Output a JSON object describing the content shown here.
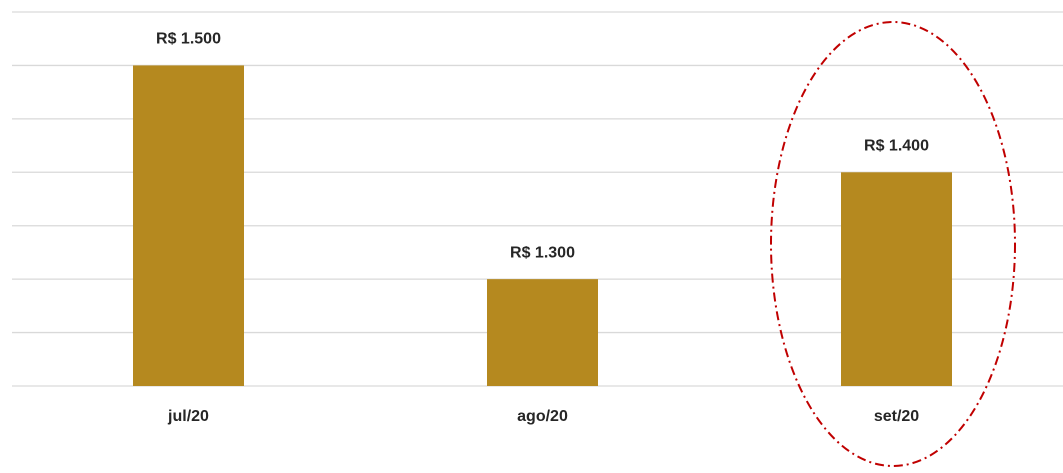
{
  "chart_data": {
    "type": "bar",
    "categories": [
      "jul/20",
      "ago/20",
      "set/20"
    ],
    "values": [
      1500,
      1300,
      1400
    ],
    "value_labels": [
      "R$ 1.500",
      "R$ 1.300",
      "R$ 1.400"
    ],
    "color": "#b5891f",
    "ylim": [
      1200,
      1550
    ],
    "yticks": [
      1200,
      1250,
      1300,
      1350,
      1400,
      1450,
      1500,
      1550
    ],
    "grid": true
  }
}
